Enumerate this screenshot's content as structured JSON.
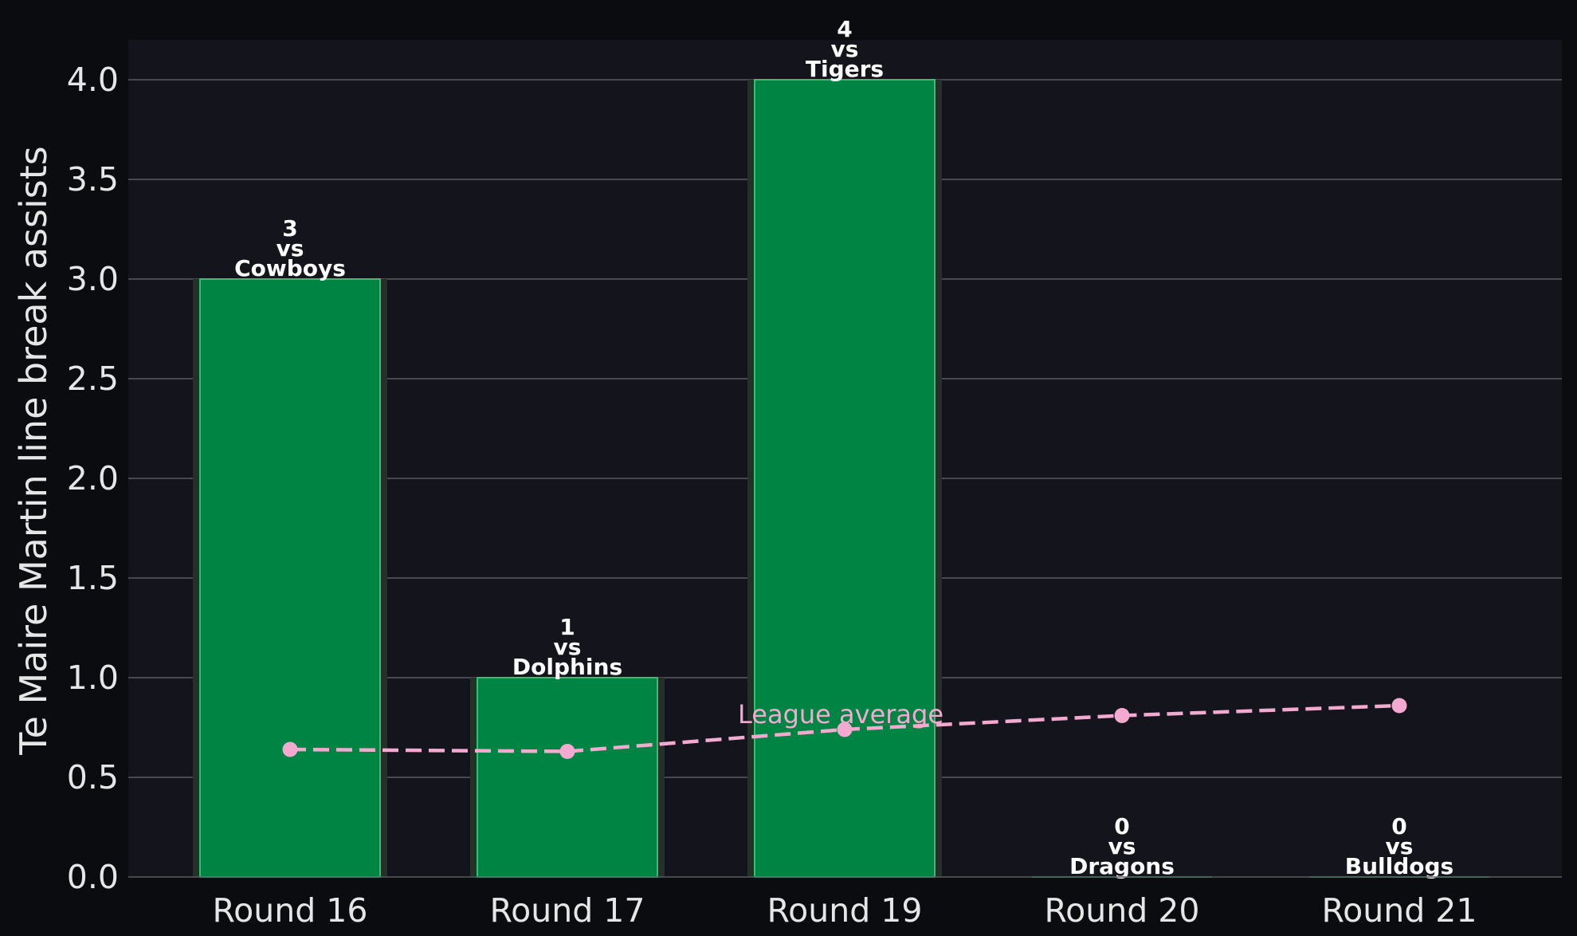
{
  "chart_data": {
    "type": "bar",
    "categories": [
      "Round 16",
      "Round 17",
      "Round 19",
      "Round 20",
      "Round 21"
    ],
    "values": [
      3,
      1,
      4,
      0,
      0
    ],
    "opponents": [
      "Cowboys",
      "Dolphins",
      "Tigers",
      "Dragons",
      "Bulldogs"
    ],
    "bar_labels": [
      [
        "3",
        "vs",
        "Cowboys"
      ],
      [
        "1",
        "vs",
        "Dolphins"
      ],
      [
        "4",
        "vs",
        "Tigers"
      ],
      [
        "0",
        "vs",
        "Dragons"
      ],
      [
        "0",
        "vs",
        "Bulldogs"
      ]
    ],
    "line_series": {
      "type": "line",
      "style": "dashed",
      "values": [
        0.64,
        0.63,
        0.74,
        0.81,
        0.86
      ]
    },
    "annotation": "League average",
    "ylabel": "Te Maire Martin line break assists",
    "xlabel": "",
    "ylim": [
      0,
      4.2
    ],
    "yticks": [
      "0.0",
      "0.5",
      "1.0",
      "1.5",
      "2.0",
      "2.5",
      "3.0",
      "3.5",
      "4.0"
    ],
    "ytick_values": [
      0,
      0.5,
      1,
      1.5,
      2,
      2.5,
      3,
      3.5,
      4
    ],
    "grid": "horizontal",
    "colors": {
      "background": "#0b0c10",
      "plot_background": "#13141c",
      "bar": "#008443",
      "bar_edge": "#3dbb74",
      "bar_shadow": "#243028",
      "line": "#f4a9d0",
      "grid": "#5a5b60",
      "text": "#e6e6e6"
    }
  }
}
